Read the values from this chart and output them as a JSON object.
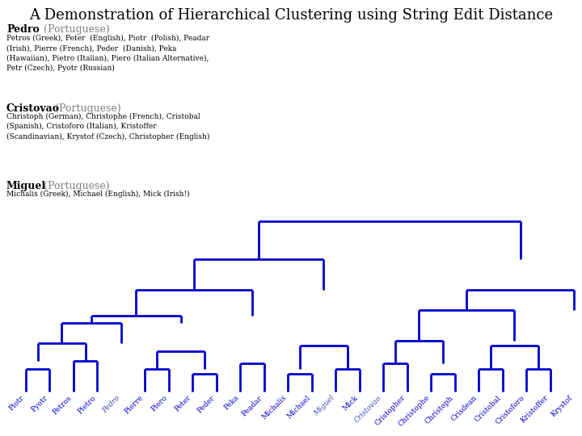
{
  "title": "A Demonstration of Hierarchical Clustering using String Edit Distance",
  "title_fontsize": 13,
  "dendrogram_color": "#0000CC",
  "bg_color": "#FFFFFF",
  "leaves": [
    "Piotr",
    "Pyotr",
    "Petros",
    "Pietro",
    "Pedro",
    "Pierre",
    "Piero",
    "Peter",
    "Peder",
    "Peka",
    "Peadar",
    "Michalis",
    "Michael",
    "Miguel",
    "Mick",
    "Cristovao",
    "Cristopher",
    "Christophe",
    "Christoph",
    "Crisdean",
    "Cristobal",
    "Cristoforo",
    "Kristoffer",
    "Krystof"
  ],
  "special_labels": [
    4,
    13,
    15
  ],
  "pedro_bold": "Pedro",
  "pedro_normal": "  (Portuguese)",
  "pedro_sub": "Petros (Greek), Peter  (English), Piotr  (Polish), Peadar\n(Irish), Pierre (French), Peder  (Danish), Peka\n(Hawaiian), Pietro (Italian), Piero (Italian Alternative),\nPetr (Czech), Pyotr (Russian)",
  "cristovao_bold": "Cristovao",
  "cristovao_normal": " (Portuguese)",
  "cristovao_sub": "Christoph (German), Christophe (French), Cristobal\n(Spanish), Cristoforo (Italian), Kristoffer\n(Scandinavian), Krystof (Czech), Christopher (English)",
  "miguel_bold": "Miguel",
  "miguel_normal": " (Portuguese)",
  "miguel_sub": "Michalis (Greek), Michael (English), Mick (Irish!)"
}
